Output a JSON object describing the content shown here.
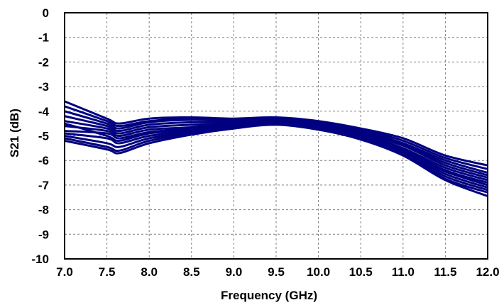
{
  "chart_data": {
    "type": "line",
    "title": "",
    "xlabel": "Frequency (GHz)",
    "ylabel": "S21 (dB)",
    "xlim": [
      7.0,
      12.0
    ],
    "ylim": [
      -10,
      0
    ],
    "x_ticks": [
      "7.0",
      "7.5",
      "8.0",
      "8.5",
      "9.0",
      "9.5",
      "10.0",
      "10.5",
      "11.0",
      "11.5",
      "12.0"
    ],
    "y_ticks": [
      "0",
      "-1",
      "-2",
      "-3",
      "-4",
      "-5",
      "-6",
      "-7",
      "-8",
      "-9",
      "-10"
    ],
    "grid": true,
    "grid_style": "dashed",
    "legend": "none",
    "series_color": "#000080",
    "x": [
      7.0,
      7.5,
      7.65,
      8.0,
      8.5,
      9.0,
      9.5,
      10.0,
      10.5,
      11.0,
      11.5,
      12.0
    ],
    "series": [
      {
        "values": [
          -3.6,
          -4.3,
          -4.5,
          -4.3,
          -4.25,
          -4.3,
          -4.25,
          -4.4,
          -4.7,
          -5.1,
          -5.8,
          -6.2
        ]
      },
      {
        "values": [
          -3.8,
          -4.4,
          -4.6,
          -4.4,
          -4.3,
          -4.35,
          -4.3,
          -4.45,
          -4.75,
          -5.2,
          -5.9,
          -6.35
        ]
      },
      {
        "values": [
          -4.0,
          -4.5,
          -4.7,
          -4.45,
          -4.35,
          -4.4,
          -4.3,
          -4.5,
          -4.8,
          -5.3,
          -6.0,
          -6.5
        ]
      },
      {
        "values": [
          -4.2,
          -4.6,
          -4.8,
          -4.55,
          -4.45,
          -4.45,
          -4.35,
          -4.55,
          -4.85,
          -5.35,
          -6.1,
          -6.6
        ]
      },
      {
        "values": [
          -4.4,
          -4.7,
          -4.9,
          -4.65,
          -4.55,
          -4.5,
          -4.35,
          -4.6,
          -4.9,
          -5.4,
          -6.2,
          -6.7
        ]
      },
      {
        "values": [
          -4.6,
          -4.8,
          -5.0,
          -4.75,
          -4.65,
          -4.5,
          -4.4,
          -4.6,
          -4.95,
          -5.5,
          -6.3,
          -6.8
        ]
      },
      {
        "values": [
          -4.8,
          -4.9,
          -5.1,
          -4.85,
          -4.7,
          -4.55,
          -4.4,
          -4.65,
          -5.0,
          -5.55,
          -6.4,
          -6.9
        ]
      },
      {
        "values": [
          -4.5,
          -5.0,
          -5.2,
          -4.9,
          -4.75,
          -4.6,
          -4.45,
          -4.65,
          -5.0,
          -5.6,
          -6.45,
          -7.0
        ]
      },
      {
        "values": [
          -4.9,
          -5.1,
          -5.3,
          -5.0,
          -4.8,
          -4.6,
          -4.45,
          -4.7,
          -5.05,
          -5.65,
          -6.55,
          -7.1
        ]
      },
      {
        "values": [
          -5.0,
          -5.3,
          -5.45,
          -5.1,
          -4.85,
          -4.65,
          -4.5,
          -4.7,
          -5.1,
          -5.7,
          -6.65,
          -7.2
        ]
      },
      {
        "values": [
          -5.1,
          -5.45,
          -5.6,
          -5.2,
          -4.9,
          -4.7,
          -4.5,
          -4.75,
          -5.1,
          -5.75,
          -6.75,
          -7.3
        ]
      },
      {
        "values": [
          -5.2,
          -5.55,
          -5.7,
          -5.3,
          -4.95,
          -4.7,
          -4.55,
          -4.75,
          -5.15,
          -5.8,
          -6.8,
          -7.45
        ]
      }
    ]
  }
}
